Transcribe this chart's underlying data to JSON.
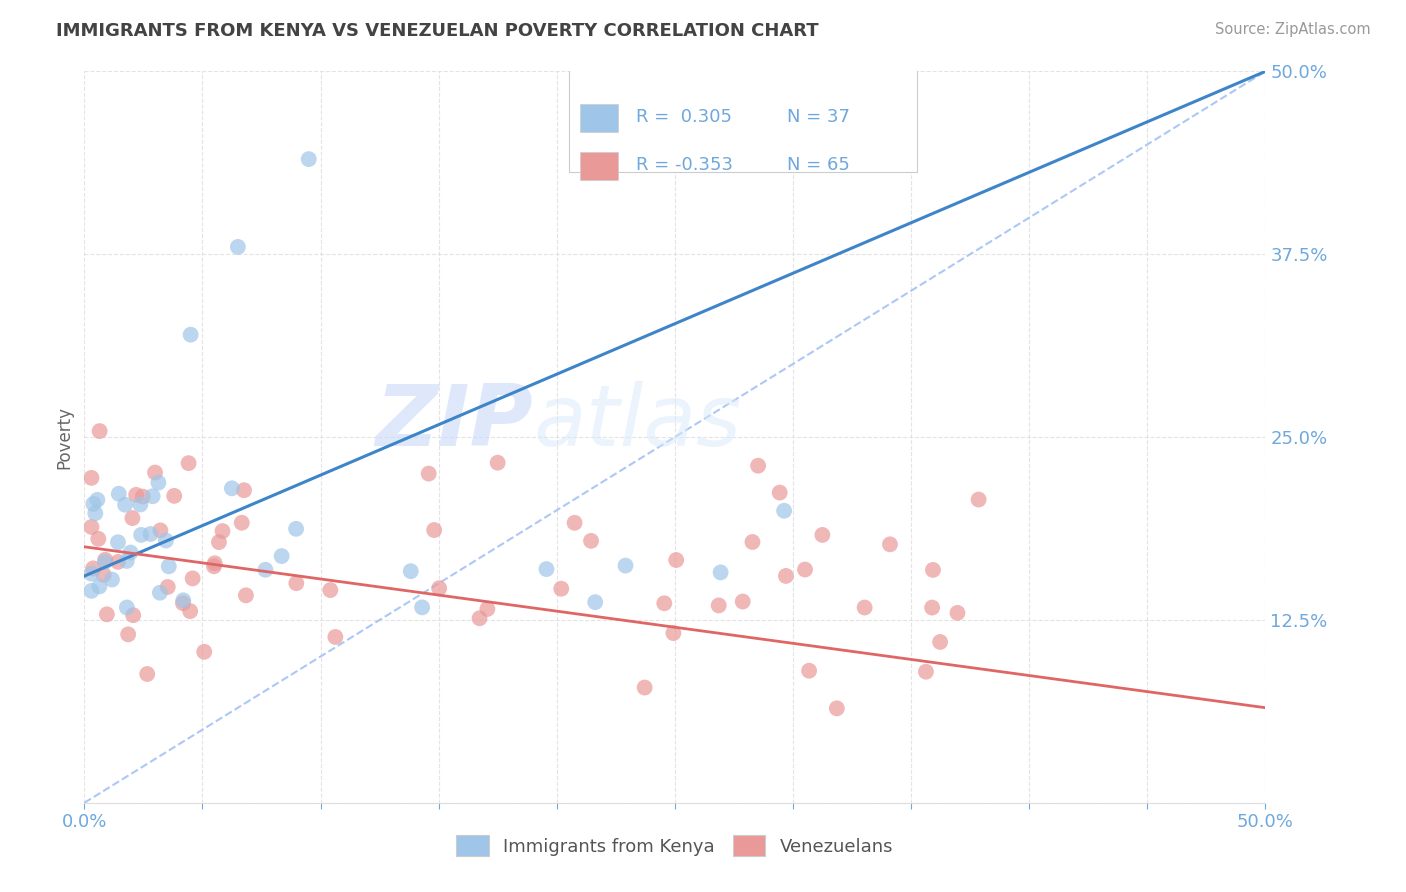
{
  "title": "IMMIGRANTS FROM KENYA VS VENEZUELAN POVERTY CORRELATION CHART",
  "source": "Source: ZipAtlas.com",
  "ylabel": "Poverty",
  "ytick_vals": [
    0.0,
    0.125,
    0.25,
    0.375,
    0.5
  ],
  "ytick_labels": [
    "",
    "12.5%",
    "25.0%",
    "37.5%",
    "50.0%"
  ],
  "xlim": [
    0.0,
    0.5
  ],
  "ylim": [
    0.0,
    0.5
  ],
  "watermark_zip": "ZIP",
  "watermark_atlas": "atlas",
  "legend_label1": "Immigrants from Kenya",
  "legend_label2": "Venezuelans",
  "blue_dot_color": "#9fc5e8",
  "pink_dot_color": "#ea9999",
  "blue_line_color": "#3d85c8",
  "pink_line_color": "#e06666",
  "dashed_line_color": "#a4c2f4",
  "title_color": "#434343",
  "axis_label_color": "#6fa8dc",
  "source_color": "#999999",
  "ylabel_color": "#666666",
  "grid_color": "#dddddd",
  "background_color": "#ffffff",
  "legend_box_color": "#f3f3f3",
  "legend_border_color": "#cccccc",
  "kenya_seed": 10,
  "venezuela_seed": 20,
  "n_kenya": 37,
  "n_venezuela": 65,
  "kenya_line_x0": 0.0,
  "kenya_line_y0": 0.155,
  "kenya_line_x1": 0.5,
  "kenya_line_y1": 0.5,
  "venezuela_line_x0": 0.0,
  "venezuela_line_y0": 0.175,
  "venezuela_line_x1": 0.5,
  "venezuela_line_y1": 0.065,
  "dashed_line_x0": 0.0,
  "dashed_line_y0": 0.0,
  "dashed_line_x1": 0.5,
  "dashed_line_y1": 0.5
}
